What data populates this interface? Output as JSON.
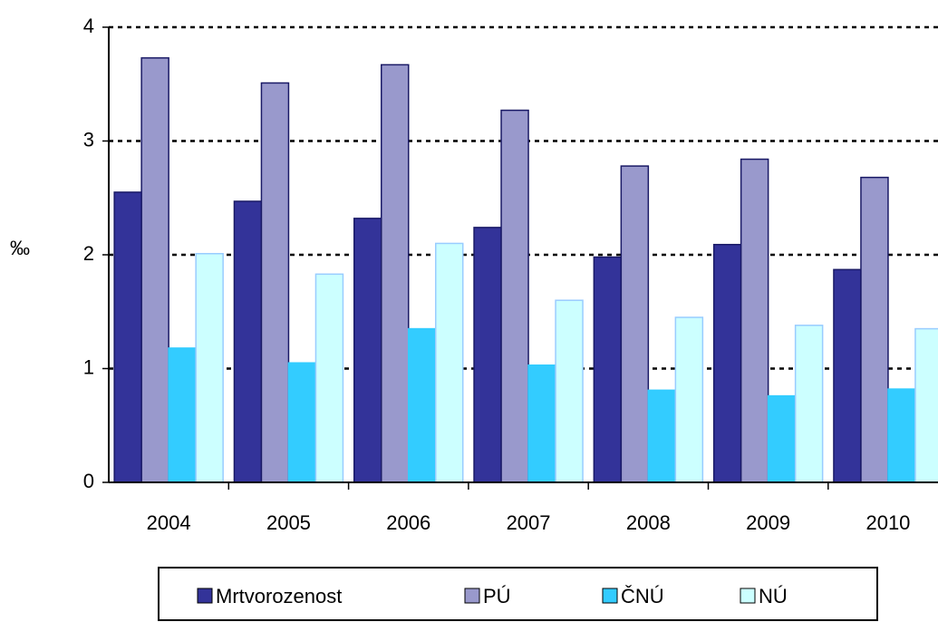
{
  "chart_data": {
    "type": "bar",
    "y_label": "‰",
    "categories": [
      "2004",
      "2005",
      "2006",
      "2007",
      "2008",
      "2009",
      "2010"
    ],
    "series": [
      {
        "name": "Mrtvorozenost",
        "color": "#333399",
        "values": [
          2.55,
          2.47,
          2.32,
          2.24,
          1.98,
          2.09,
          1.87
        ]
      },
      {
        "name": "PÚ",
        "color": "#9999cc",
        "values": [
          3.73,
          3.51,
          3.67,
          3.27,
          2.78,
          2.84,
          2.68
        ]
      },
      {
        "name": "ČNÚ",
        "color": "#33ccff",
        "values": [
          1.18,
          1.05,
          1.35,
          1.03,
          0.81,
          0.76,
          0.82
        ]
      },
      {
        "name": "NÚ",
        "color": "#ccffff",
        "values": [
          2.01,
          1.83,
          2.1,
          1.6,
          1.45,
          1.38,
          1.35
        ]
      }
    ],
    "ylim": [
      0,
      4
    ],
    "yticks": [
      0,
      1,
      2,
      3,
      4
    ],
    "grid": true,
    "legend": "bottom"
  }
}
